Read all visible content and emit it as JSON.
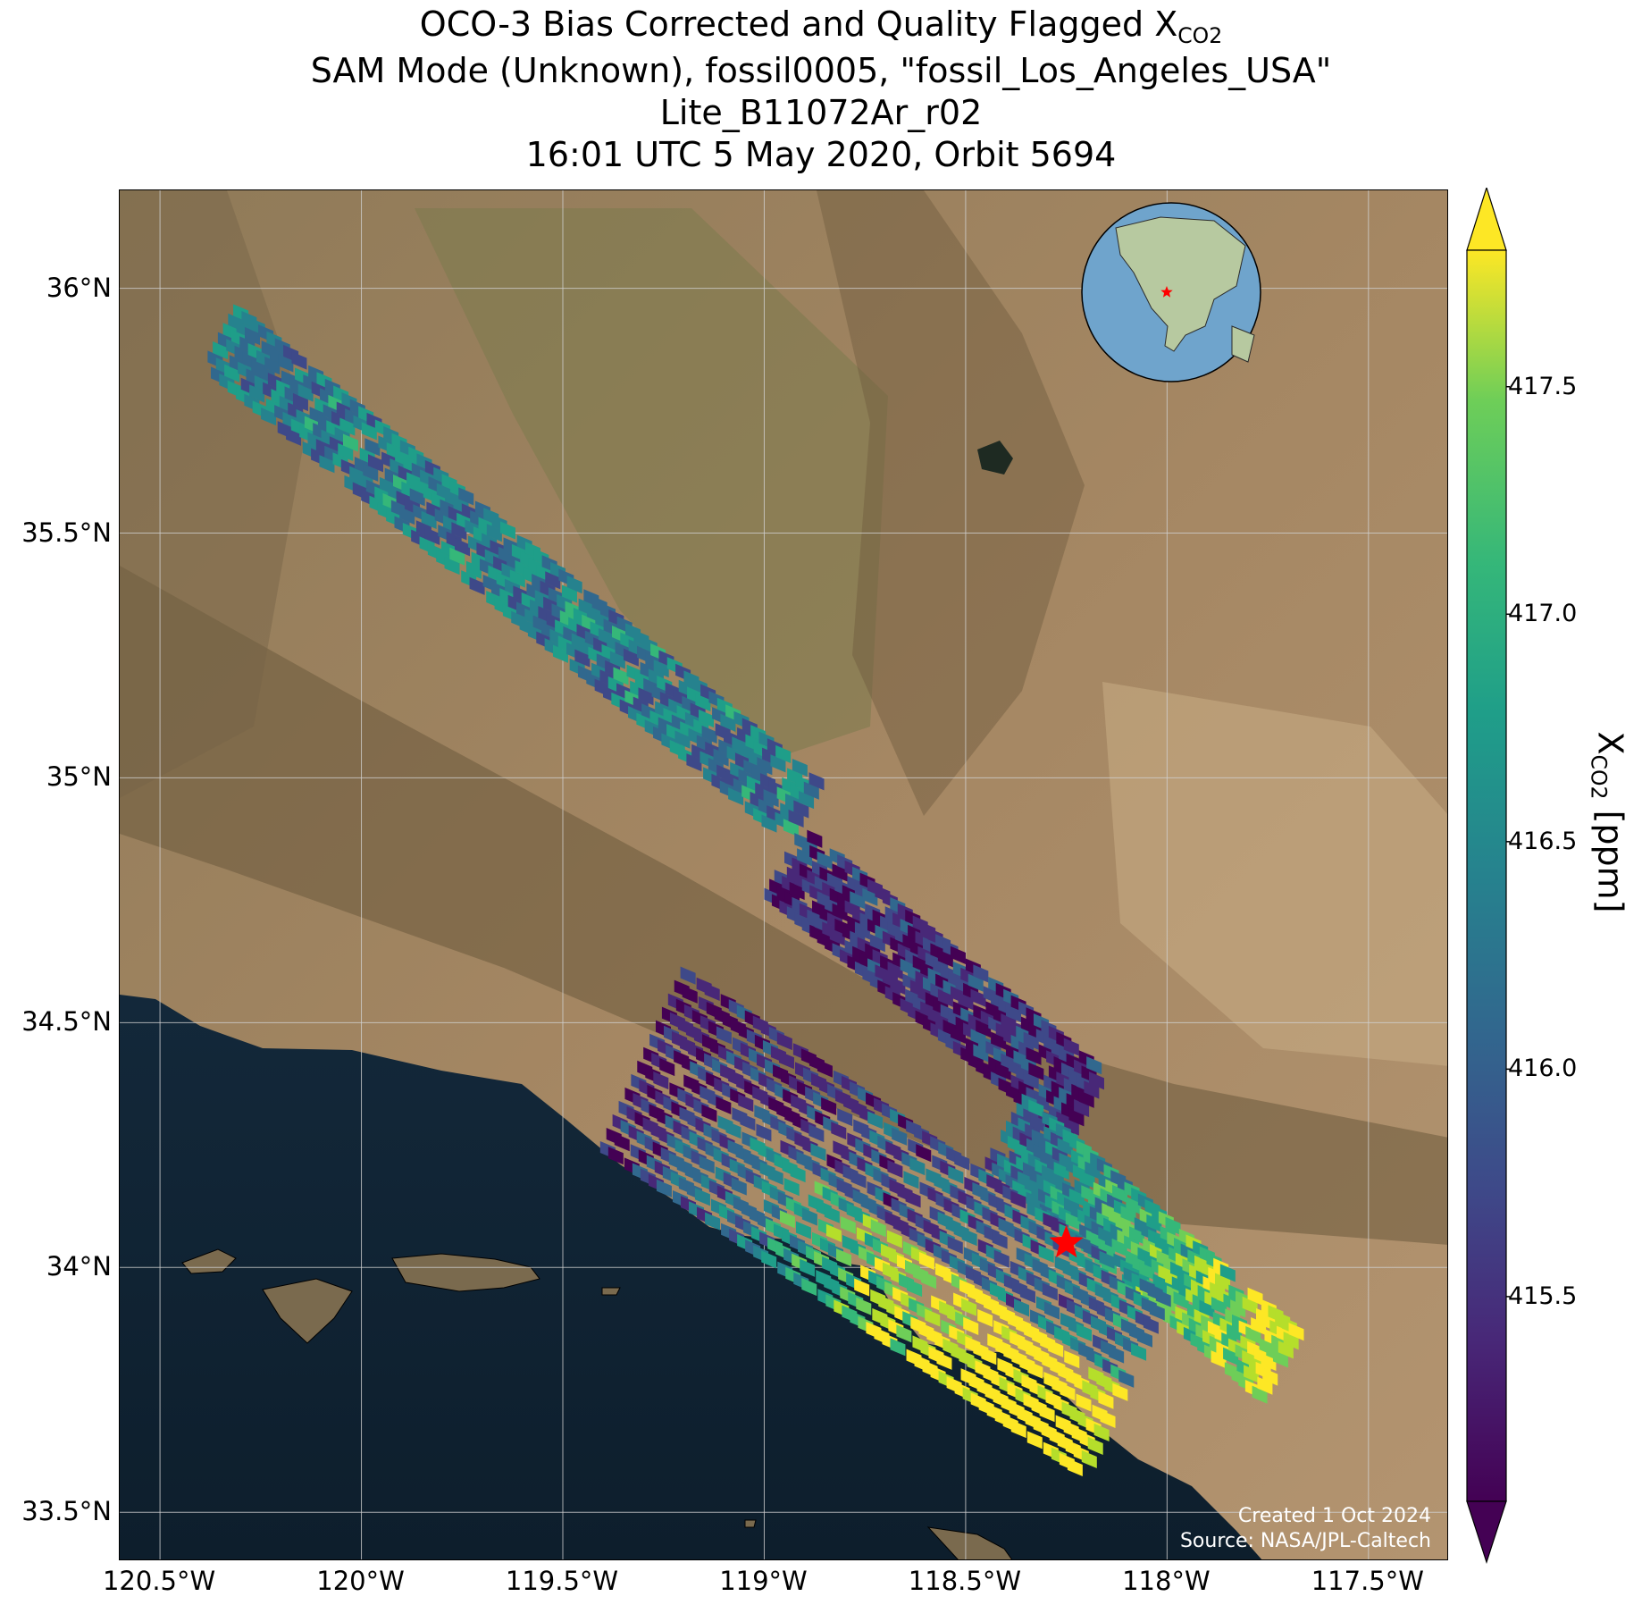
{
  "title_lines": {
    "line1_prefix": "OCO-3 Bias Corrected and Quality Flagged X",
    "line1_sub": "CO2",
    "line2": "SAM Mode (Unknown), fossil0005, \"fossil_Los_Angeles_USA\"",
    "line3": "Lite_B11072Ar_r02",
    "line4": "16:01 UTC 5 May 2020, Orbit 5694"
  },
  "map": {
    "lon_range": [
      -120.6,
      -117.3
    ],
    "lat_range": [
      33.4,
      36.2
    ],
    "lon_ticks": [
      {
        "value": -120.5,
        "label": "120.5°W"
      },
      {
        "value": -120.0,
        "label": "120°W"
      },
      {
        "value": -119.5,
        "label": "119.5°W"
      },
      {
        "value": -119.0,
        "label": "119°W"
      },
      {
        "value": -118.5,
        "label": "118.5°W"
      },
      {
        "value": -118.0,
        "label": "118°W"
      },
      {
        "value": -117.5,
        "label": "117.5°W"
      }
    ],
    "lat_ticks": [
      {
        "value": 36.0,
        "label": "36°N"
      },
      {
        "value": 35.5,
        "label": "35.5°N"
      },
      {
        "value": 35.0,
        "label": "35°N"
      },
      {
        "value": 34.5,
        "label": "34.5°N"
      },
      {
        "value": 34.0,
        "label": "34°N"
      },
      {
        "value": 33.5,
        "label": "33.5°N"
      }
    ],
    "target_marker": {
      "lon": -118.25,
      "lat": 34.05,
      "color": "#ff0000"
    },
    "colors": {
      "ocean": "#0f2233",
      "land": "#9a7f5c",
      "mountain": "#6b5a3c",
      "grid": "#d0d0d0"
    }
  },
  "colorbar": {
    "title_prefix": "X",
    "title_sub": "CO2",
    "title_suffix": " [ppm]",
    "range": [
      415.05,
      417.8
    ],
    "ticks": [
      {
        "value": 417.5,
        "label": "417.5"
      },
      {
        "value": 417.0,
        "label": "417.0"
      },
      {
        "value": 416.5,
        "label": "416.5"
      },
      {
        "value": 416.0,
        "label": "416.0"
      },
      {
        "value": 415.5,
        "label": "415.5"
      }
    ],
    "colormap": "viridis",
    "extend": "both"
  },
  "credit": {
    "line1": "Created 1 Oct 2024",
    "line2": "Source: NASA/JPL-Caltech"
  }
}
